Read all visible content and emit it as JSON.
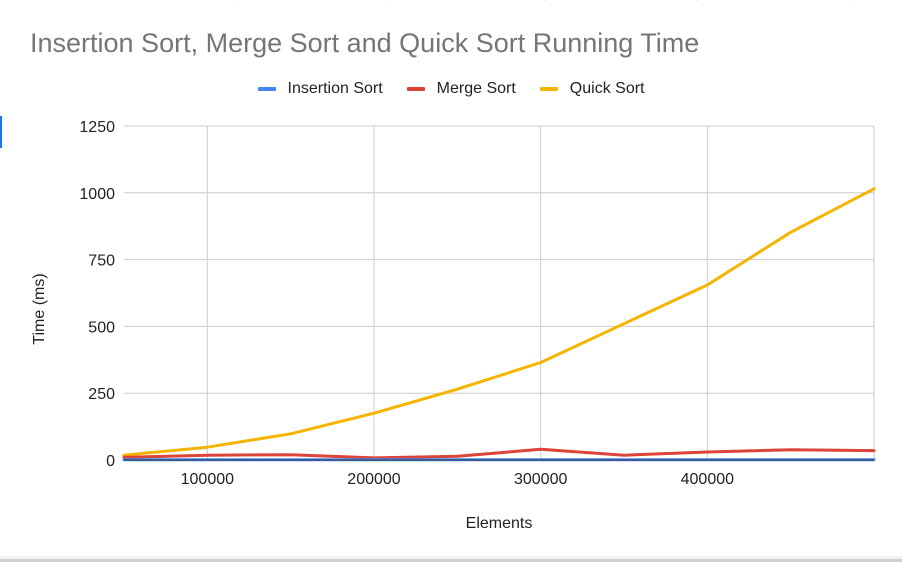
{
  "chart_data": {
    "type": "line",
    "title": "Insertion Sort, Merge Sort and Quick Sort Running Time",
    "xlabel": "Elements",
    "ylabel": "Time (ms)",
    "xlim": [
      50000,
      500000
    ],
    "ylim": [
      0,
      1250
    ],
    "x_ticks": [
      100000,
      200000,
      300000,
      400000
    ],
    "y_ticks": [
      0,
      250,
      500,
      750,
      1000,
      1250
    ],
    "grid": true,
    "legend_position": "top",
    "x": [
      50000,
      100000,
      150000,
      200000,
      250000,
      300000,
      350000,
      400000,
      450000,
      500000
    ],
    "series": [
      {
        "name": "Insertion Sort",
        "color": "#4285f4",
        "values": [
          1,
          1,
          1,
          1,
          1,
          1,
          1,
          1,
          1,
          1
        ]
      },
      {
        "name": "Merge Sort",
        "color": "#db4437",
        "values": [
          10,
          18,
          20,
          8,
          14,
          40,
          18,
          30,
          38,
          35
        ]
      },
      {
        "name": "Quick Sort",
        "color": "#f4b400",
        "values": [
          18,
          48,
          98,
          175,
          265,
          365,
          510,
          655,
          852,
          1015
        ]
      }
    ]
  }
}
